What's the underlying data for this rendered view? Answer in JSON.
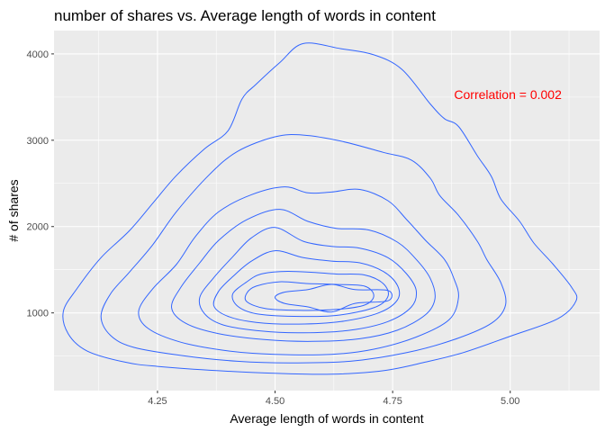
{
  "chart_data": {
    "type": "contour",
    "title": "number of shares vs. Average length of words in content",
    "xlabel": "Average length of words in content",
    "ylabel": "# of shares",
    "xlim": [
      4.03,
      5.19
    ],
    "ylim": [
      100,
      4270
    ],
    "xticks": [
      4.25,
      4.5,
      4.75,
      5.0
    ],
    "xtick_labels": [
      "4.25",
      "4.50",
      "4.75",
      "5.00"
    ],
    "yticks": [
      1000,
      2000,
      3000,
      4000
    ],
    "ytick_labels": [
      "1000",
      "2000",
      "3000",
      "4000"
    ],
    "grid": true,
    "colors": {
      "panel": "#EBEBEB",
      "grid": "#FFFFFF",
      "contour": "#3366FF",
      "annotation": "#FF0000"
    },
    "annotation": {
      "text": "Correlation = 0.002",
      "x": 4.995,
      "y": 3480
    },
    "contours": [
      {
        "level": 1,
        "points": [
          [
            4.56,
            4120
          ],
          [
            4.64,
            4060
          ],
          [
            4.71,
            3990
          ],
          [
            4.77,
            3820
          ],
          [
            4.83,
            3420
          ],
          [
            4.86,
            3250
          ],
          [
            4.89,
            3160
          ],
          [
            4.93,
            2820
          ],
          [
            4.96,
            2580
          ],
          [
            4.98,
            2320
          ],
          [
            5.02,
            2060
          ],
          [
            5.05,
            1810
          ],
          [
            5.09,
            1570
          ],
          [
            5.13,
            1300
          ],
          [
            5.14,
            1140
          ],
          [
            5.1,
            930
          ],
          [
            5.0,
            730
          ],
          [
            4.9,
            540
          ],
          [
            4.82,
            430
          ],
          [
            4.73,
            330
          ],
          [
            4.62,
            290
          ],
          [
            4.5,
            300
          ],
          [
            4.38,
            330
          ],
          [
            4.25,
            380
          ],
          [
            4.18,
            430
          ],
          [
            4.1,
            560
          ],
          [
            4.06,
            760
          ],
          [
            4.05,
            1020
          ],
          [
            4.08,
            1290
          ],
          [
            4.13,
            1640
          ],
          [
            4.19,
            1950
          ],
          [
            4.24,
            2270
          ],
          [
            4.29,
            2590
          ],
          [
            4.35,
            2900
          ],
          [
            4.4,
            3110
          ],
          [
            4.43,
            3480
          ],
          [
            4.46,
            3650
          ],
          [
            4.51,
            3900
          ]
        ]
      },
      {
        "level": 2,
        "points": [
          [
            4.56,
            3060
          ],
          [
            4.64,
            2990
          ],
          [
            4.73,
            2860
          ],
          [
            4.79,
            2770
          ],
          [
            4.83,
            2560
          ],
          [
            4.85,
            2360
          ],
          [
            4.89,
            2130
          ],
          [
            4.93,
            1830
          ],
          [
            4.95,
            1620
          ],
          [
            4.98,
            1350
          ],
          [
            4.99,
            1090
          ],
          [
            4.96,
            880
          ],
          [
            4.88,
            690
          ],
          [
            4.78,
            540
          ],
          [
            4.66,
            440
          ],
          [
            4.53,
            420
          ],
          [
            4.42,
            440
          ],
          [
            4.31,
            500
          ],
          [
            4.2,
            600
          ],
          [
            4.15,
            740
          ],
          [
            4.13,
            960
          ],
          [
            4.15,
            1220
          ],
          [
            4.19,
            1470
          ],
          [
            4.24,
            1790
          ],
          [
            4.29,
            2170
          ],
          [
            4.36,
            2600
          ],
          [
            4.42,
            2870
          ],
          [
            4.5,
            3040
          ]
        ]
      },
      {
        "level": 3,
        "points": [
          [
            4.52,
            2460
          ],
          [
            4.57,
            2390
          ],
          [
            4.62,
            2400
          ],
          [
            4.68,
            2430
          ],
          [
            4.74,
            2300
          ],
          [
            4.78,
            2080
          ],
          [
            4.82,
            1840
          ],
          [
            4.86,
            1620
          ],
          [
            4.88,
            1400
          ],
          [
            4.89,
            1180
          ],
          [
            4.87,
            920
          ],
          [
            4.8,
            720
          ],
          [
            4.71,
            580
          ],
          [
            4.62,
            520
          ],
          [
            4.5,
            520
          ],
          [
            4.4,
            560
          ],
          [
            4.3,
            660
          ],
          [
            4.23,
            820
          ],
          [
            4.21,
            1020
          ],
          [
            4.24,
            1280
          ],
          [
            4.29,
            1560
          ],
          [
            4.33,
            1880
          ],
          [
            4.38,
            2170
          ],
          [
            4.45,
            2370
          ]
        ]
      },
      {
        "level": 4,
        "points": [
          [
            4.51,
            2200
          ],
          [
            4.57,
            2060
          ],
          [
            4.63,
            1980
          ],
          [
            4.7,
            1960
          ],
          [
            4.76,
            1820
          ],
          [
            4.8,
            1620
          ],
          [
            4.83,
            1400
          ],
          [
            4.84,
            1170
          ],
          [
            4.82,
            980
          ],
          [
            4.76,
            800
          ],
          [
            4.68,
            700
          ],
          [
            4.58,
            670
          ],
          [
            4.48,
            690
          ],
          [
            4.38,
            760
          ],
          [
            4.31,
            880
          ],
          [
            4.28,
            1060
          ],
          [
            4.3,
            1300
          ],
          [
            4.34,
            1580
          ],
          [
            4.38,
            1840
          ],
          [
            4.44,
            2080
          ]
        ]
      },
      {
        "level": 5,
        "points": [
          [
            4.5,
            1990
          ],
          [
            4.56,
            1830
          ],
          [
            4.62,
            1770
          ],
          [
            4.68,
            1750
          ],
          [
            4.74,
            1640
          ],
          [
            4.78,
            1450
          ],
          [
            4.8,
            1260
          ],
          [
            4.79,
            1070
          ],
          [
            4.74,
            900
          ],
          [
            4.66,
            800
          ],
          [
            4.56,
            770
          ],
          [
            4.47,
            790
          ],
          [
            4.39,
            860
          ],
          [
            4.35,
            990
          ],
          [
            4.34,
            1180
          ],
          [
            4.37,
            1410
          ],
          [
            4.41,
            1650
          ],
          [
            4.45,
            1870
          ]
        ]
      },
      {
        "level": 6,
        "points": [
          [
            4.5,
            1720
          ],
          [
            4.56,
            1640
          ],
          [
            4.62,
            1600
          ],
          [
            4.68,
            1580
          ],
          [
            4.73,
            1480
          ],
          [
            4.76,
            1320
          ],
          [
            4.76,
            1150
          ],
          [
            4.72,
            1000
          ],
          [
            4.64,
            900
          ],
          [
            4.55,
            870
          ],
          [
            4.46,
            890
          ],
          [
            4.4,
            960
          ],
          [
            4.37,
            1080
          ],
          [
            4.38,
            1250
          ],
          [
            4.41,
            1420
          ],
          [
            4.45,
            1600
          ]
        ]
      },
      {
        "level": 7,
        "points": [
          [
            4.52,
            1480
          ],
          [
            4.58,
            1470
          ],
          [
            4.63,
            1450
          ],
          [
            4.69,
            1440
          ],
          [
            4.73,
            1340
          ],
          [
            4.74,
            1190
          ],
          [
            4.71,
            1060
          ],
          [
            4.63,
            970
          ],
          [
            4.54,
            960
          ],
          [
            4.46,
            990
          ],
          [
            4.42,
            1080
          ],
          [
            4.41,
            1220
          ],
          [
            4.44,
            1360
          ],
          [
            4.47,
            1450
          ]
        ]
      },
      {
        "level": 8,
        "points": [
          [
            4.51,
            1360
          ],
          [
            4.57,
            1340
          ],
          [
            4.63,
            1330
          ],
          [
            4.69,
            1310
          ],
          [
            4.71,
            1200
          ],
          [
            4.69,
            1090
          ],
          [
            4.63,
            1040
          ],
          [
            4.55,
            1030
          ],
          [
            4.48,
            1050
          ],
          [
            4.44,
            1130
          ],
          [
            4.44,
            1230
          ],
          [
            4.46,
            1310
          ]
        ]
      },
      {
        "level": 9,
        "points": [
          [
            4.62,
            1330
          ],
          [
            4.67,
            1270
          ],
          [
            4.74,
            1260
          ],
          [
            4.74,
            1140
          ],
          [
            4.67,
            1110
          ],
          [
            4.62,
            1010
          ],
          [
            4.57,
            1070
          ],
          [
            4.52,
            1110
          ],
          [
            4.5,
            1180
          ],
          [
            4.52,
            1240
          ],
          [
            4.57,
            1270
          ]
        ]
      }
    ]
  }
}
